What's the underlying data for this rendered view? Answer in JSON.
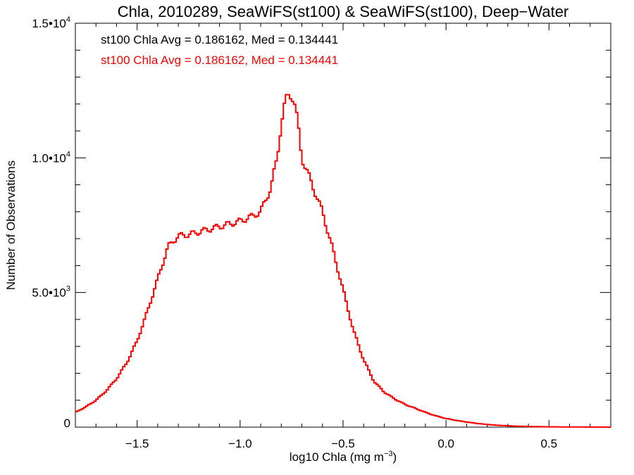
{
  "chart_data": {
    "type": "line",
    "title": "Chla, 2010289, SeaWiFS(st100) & SeaWiFS(st100), Deep−Water",
    "xlabel": "log10 Chla (mg m",
    "xlabel_sup": "−3",
    "xlabel_end": ")",
    "ylabel": "Number of Observations",
    "xlim": [
      -1.8,
      0.8
    ],
    "ylim": [
      0,
      15000
    ],
    "xticks": [
      {
        "value": -1.5,
        "label": "−1.5"
      },
      {
        "value": -1.0,
        "label": "−1.0"
      },
      {
        "value": -0.5,
        "label": "−0.5"
      },
      {
        "value": 0.0,
        "label": "0.0"
      },
      {
        "value": 0.5,
        "label": "0.5"
      }
    ],
    "yticks": [
      {
        "value": 0,
        "mant": "0",
        "exp": ""
      },
      {
        "value": 5000,
        "mant": "5.0•10",
        "exp": "3"
      },
      {
        "value": 10000,
        "mant": "1.0•10",
        "exp": "4"
      },
      {
        "value": 15000,
        "mant": "1.5•10",
        "exp": "4"
      }
    ],
    "legend_position": "top-left",
    "series": [
      {
        "name": "st100 Chla Avg = 0.186162, Med = 0.134441",
        "color": "#000000",
        "x": [
          -1.8,
          -1.75,
          -1.7,
          -1.65,
          -1.6,
          -1.55,
          -1.5,
          -1.45,
          -1.4,
          -1.35,
          -1.3,
          -1.25,
          -1.2,
          -1.15,
          -1.1,
          -1.05,
          -1.0,
          -0.95,
          -0.9,
          -0.85,
          -0.82,
          -0.8,
          -0.78,
          -0.76,
          -0.74,
          -0.72,
          -0.7,
          -0.68,
          -0.65,
          -0.6,
          -0.55,
          -0.5,
          -0.45,
          -0.4,
          -0.35,
          -0.3,
          -0.25,
          -0.2,
          -0.15,
          -0.1,
          -0.05,
          0.0,
          0.05,
          0.1,
          0.15,
          0.2,
          0.25,
          0.3,
          0.35,
          0.4,
          0.45,
          0.5,
          0.6,
          0.7,
          0.8
        ],
        "y": [
          550,
          750,
          1000,
          1350,
          1800,
          2400,
          3200,
          4300,
          5500,
          6700,
          7100,
          7150,
          7250,
          7350,
          7450,
          7550,
          7650,
          7800,
          8000,
          8900,
          10000,
          11300,
          12100,
          12400,
          12200,
          11300,
          10000,
          9600,
          9000,
          8000,
          6600,
          5100,
          3600,
          2500,
          1700,
          1300,
          1050,
          850,
          700,
          550,
          420,
          320,
          250,
          190,
          140,
          100,
          70,
          50,
          35,
          25,
          18,
          12,
          6,
          3,
          1
        ]
      },
      {
        "name": "st100 Chla Avg = 0.186162, Med = 0.134441",
        "color": "#ff0000",
        "x": [
          -1.8,
          -1.75,
          -1.7,
          -1.65,
          -1.6,
          -1.55,
          -1.5,
          -1.45,
          -1.4,
          -1.35,
          -1.3,
          -1.25,
          -1.2,
          -1.15,
          -1.1,
          -1.05,
          -1.0,
          -0.95,
          -0.9,
          -0.85,
          -0.82,
          -0.8,
          -0.78,
          -0.76,
          -0.74,
          -0.72,
          -0.7,
          -0.68,
          -0.65,
          -0.6,
          -0.55,
          -0.5,
          -0.45,
          -0.4,
          -0.35,
          -0.3,
          -0.25,
          -0.2,
          -0.15,
          -0.1,
          -0.05,
          0.0,
          0.05,
          0.1,
          0.15,
          0.2,
          0.25,
          0.3,
          0.35,
          0.4,
          0.45,
          0.5,
          0.6,
          0.7,
          0.8
        ],
        "y": [
          550,
          750,
          1000,
          1350,
          1800,
          2400,
          3200,
          4300,
          5500,
          6700,
          7100,
          7150,
          7250,
          7350,
          7450,
          7550,
          7650,
          7800,
          8000,
          8900,
          10000,
          11300,
          12100,
          12400,
          12200,
          11300,
          10000,
          9600,
          9000,
          8000,
          6600,
          5100,
          3600,
          2500,
          1700,
          1300,
          1050,
          850,
          700,
          550,
          420,
          320,
          250,
          190,
          140,
          100,
          70,
          50,
          35,
          25,
          18,
          12,
          6,
          3,
          1
        ]
      }
    ]
  }
}
